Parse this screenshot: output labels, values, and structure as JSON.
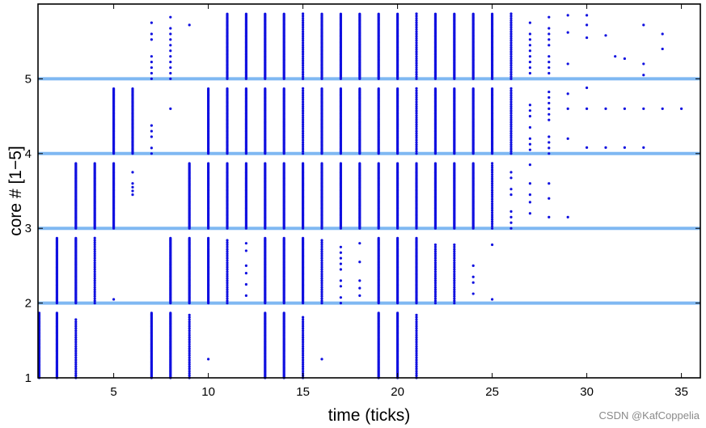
{
  "chart_data": {
    "type": "scatter",
    "xlabel": "time (ticks)",
    "ylabel": "core # [1−5]",
    "xlim": [
      1,
      36
    ],
    "ylim": [
      1,
      6
    ],
    "xticks": [
      5,
      10,
      15,
      20,
      25,
      30,
      35
    ],
    "yticks": [
      1,
      2,
      3,
      4,
      5
    ],
    "grid": false,
    "separator_color": "#7fb8f2",
    "marker_color": "#1010e0",
    "bands": [
      {
        "core": 1,
        "columns": [
          {
            "x": 1,
            "lo": 0.0,
            "hi": 0.88,
            "density": "dense"
          },
          {
            "x": 2,
            "lo": 0.0,
            "hi": 0.88,
            "density": "dense"
          },
          {
            "x": 3,
            "lo": 0.0,
            "hi": 0.8,
            "density": "medium"
          },
          {
            "x": 7,
            "lo": 0.0,
            "hi": 0.88,
            "density": "dense"
          },
          {
            "x": 8,
            "lo": 0.0,
            "hi": 0.88,
            "density": "dense"
          },
          {
            "x": 9,
            "lo": 0.0,
            "hi": 0.85,
            "density": "medium"
          },
          {
            "x": 10,
            "points": [
              0.25
            ]
          },
          {
            "x": 13,
            "lo": 0.0,
            "hi": 0.88,
            "density": "dense"
          },
          {
            "x": 14,
            "lo": 0.0,
            "hi": 0.88,
            "density": "dense"
          },
          {
            "x": 15,
            "lo": 0.0,
            "hi": 0.82,
            "density": "medium"
          },
          {
            "x": 16,
            "points": [
              0.25
            ]
          },
          {
            "x": 19,
            "lo": 0.0,
            "hi": 0.88,
            "density": "dense"
          },
          {
            "x": 20,
            "lo": 0.0,
            "hi": 0.88,
            "density": "dense"
          },
          {
            "x": 21,
            "lo": 0.0,
            "hi": 0.85,
            "density": "medium"
          }
        ]
      },
      {
        "core": 2,
        "columns": [
          {
            "x": 2,
            "lo": 0.0,
            "hi": 0.88,
            "density": "dense"
          },
          {
            "x": 3,
            "lo": 0.0,
            "hi": 0.88,
            "density": "dense"
          },
          {
            "x": 4,
            "lo": 0.0,
            "hi": 0.88,
            "density": "medium"
          },
          {
            "x": 5,
            "points": [
              0.05
            ]
          },
          {
            "x": 8,
            "lo": 0.0,
            "hi": 0.88,
            "density": "dense"
          },
          {
            "x": 9,
            "lo": 0.0,
            "hi": 0.88,
            "density": "dense"
          },
          {
            "x": 10,
            "lo": 0.0,
            "hi": 0.88,
            "density": "dense"
          },
          {
            "x": 11,
            "lo": 0.0,
            "hi": 0.85,
            "density": "medium"
          },
          {
            "x": 12,
            "points": [
              0.1,
              0.25,
              0.4,
              0.5,
              0.7,
              0.8
            ]
          },
          {
            "x": 13,
            "lo": 0.0,
            "hi": 0.88,
            "density": "dense"
          },
          {
            "x": 14,
            "lo": 0.0,
            "hi": 0.88,
            "density": "dense"
          },
          {
            "x": 15,
            "lo": 0.0,
            "hi": 0.88,
            "density": "dense"
          },
          {
            "x": 16,
            "lo": 0.0,
            "hi": 0.85,
            "density": "medium"
          },
          {
            "x": 17,
            "lo": 0.0,
            "hi": 0.8,
            "density": "sparse"
          },
          {
            "x": 18,
            "points": [
              0.1,
              0.2,
              0.3,
              0.55,
              0.8
            ]
          },
          {
            "x": 19,
            "lo": 0.0,
            "hi": 0.88,
            "density": "dense"
          },
          {
            "x": 20,
            "lo": 0.0,
            "hi": 0.88,
            "density": "dense"
          },
          {
            "x": 21,
            "lo": 0.0,
            "hi": 0.88,
            "density": "dense"
          },
          {
            "x": 22,
            "lo": 0.0,
            "hi": 0.8,
            "density": "medium"
          },
          {
            "x": 23,
            "lo": 0.0,
            "hi": 0.8,
            "density": "medium"
          },
          {
            "x": 24,
            "lo": 0.05,
            "hi": 0.5,
            "density": "sparse"
          },
          {
            "x": 25,
            "points": [
              0.05,
              0.78
            ]
          }
        ]
      },
      {
        "core": 3,
        "columns": [
          {
            "x": 3,
            "lo": 0.0,
            "hi": 0.88,
            "density": "dense"
          },
          {
            "x": 4,
            "lo": 0.0,
            "hi": 0.88,
            "density": "dense"
          },
          {
            "x": 5,
            "lo": 0.0,
            "hi": 0.88,
            "density": "dense"
          },
          {
            "x": 6,
            "points": [
              0.45,
              0.5,
              0.55,
              0.6,
              0.75
            ]
          },
          {
            "x": 9,
            "lo": 0.0,
            "hi": 0.88,
            "density": "dense"
          },
          {
            "x": 10,
            "lo": 0.0,
            "hi": 0.88,
            "density": "dense"
          },
          {
            "x": 11,
            "lo": 0.0,
            "hi": 0.88,
            "density": "dense"
          },
          {
            "x": 12,
            "lo": 0.0,
            "hi": 0.88,
            "density": "dense"
          },
          {
            "x": 13,
            "lo": 0.0,
            "hi": 0.88,
            "density": "dense"
          },
          {
            "x": 14,
            "lo": 0.0,
            "hi": 0.88,
            "density": "dense"
          },
          {
            "x": 15,
            "lo": 0.0,
            "hi": 0.88,
            "density": "dense"
          },
          {
            "x": 16,
            "lo": 0.0,
            "hi": 0.88,
            "density": "dense"
          },
          {
            "x": 17,
            "lo": 0.0,
            "hi": 0.88,
            "density": "dense"
          },
          {
            "x": 18,
            "lo": 0.0,
            "hi": 0.88,
            "density": "dense"
          },
          {
            "x": 19,
            "lo": 0.0,
            "hi": 0.88,
            "density": "dense"
          },
          {
            "x": 20,
            "lo": 0.0,
            "hi": 0.88,
            "density": "dense"
          },
          {
            "x": 21,
            "lo": 0.0,
            "hi": 0.88,
            "density": "dense"
          },
          {
            "x": 22,
            "lo": 0.0,
            "hi": 0.88,
            "density": "dense"
          },
          {
            "x": 23,
            "lo": 0.0,
            "hi": 0.88,
            "density": "dense"
          },
          {
            "x": 24,
            "lo": 0.0,
            "hi": 0.88,
            "density": "dense"
          },
          {
            "x": 25,
            "lo": 0.0,
            "hi": 0.88,
            "density": "medium"
          },
          {
            "x": 26,
            "lo": 0.0,
            "hi": 0.85,
            "density": "sparse"
          },
          {
            "x": 27,
            "points": [
              0.2,
              0.35,
              0.45,
              0.6,
              0.85
            ]
          },
          {
            "x": 28,
            "points": [
              0.15,
              0.4,
              0.6
            ]
          },
          {
            "x": 29,
            "points": [
              0.15
            ]
          }
        ]
      },
      {
        "core": 4,
        "columns": [
          {
            "x": 5,
            "lo": 0.0,
            "hi": 0.88,
            "density": "dense"
          },
          {
            "x": 6,
            "lo": 0.0,
            "hi": 0.88,
            "density": "dense"
          },
          {
            "x": 7,
            "lo": 0.0,
            "hi": 0.55,
            "density": "sparse"
          },
          {
            "x": 8,
            "points": [
              0.6
            ]
          },
          {
            "x": 10,
            "lo": 0.0,
            "hi": 0.88,
            "density": "dense"
          },
          {
            "x": 11,
            "lo": 0.0,
            "hi": 0.88,
            "density": "dense"
          },
          {
            "x": 12,
            "lo": 0.0,
            "hi": 0.88,
            "density": "dense"
          },
          {
            "x": 13,
            "lo": 0.0,
            "hi": 0.88,
            "density": "dense"
          },
          {
            "x": 14,
            "lo": 0.0,
            "hi": 0.88,
            "density": "dense"
          },
          {
            "x": 15,
            "lo": 0.0,
            "hi": 0.88,
            "density": "medium"
          },
          {
            "x": 16,
            "lo": 0.0,
            "hi": 0.88,
            "density": "dense"
          },
          {
            "x": 17,
            "lo": 0.0,
            "hi": 0.88,
            "density": "dense"
          },
          {
            "x": 18,
            "lo": 0.0,
            "hi": 0.88,
            "density": "dense"
          },
          {
            "x": 19,
            "lo": 0.0,
            "hi": 0.88,
            "density": "dense"
          },
          {
            "x": 20,
            "lo": 0.0,
            "hi": 0.88,
            "density": "dense"
          },
          {
            "x": 21,
            "lo": 0.0,
            "hi": 0.88,
            "density": "medium"
          },
          {
            "x": 22,
            "lo": 0.0,
            "hi": 0.88,
            "density": "dense"
          },
          {
            "x": 23,
            "lo": 0.0,
            "hi": 0.88,
            "density": "dense"
          },
          {
            "x": 24,
            "lo": 0.0,
            "hi": 0.88,
            "density": "dense"
          },
          {
            "x": 25,
            "lo": 0.0,
            "hi": 0.88,
            "density": "dense"
          },
          {
            "x": 26,
            "lo": 0.0,
            "hi": 0.88,
            "density": "medium"
          },
          {
            "x": 27,
            "lo": 0.05,
            "hi": 0.65,
            "density": "sparse"
          },
          {
            "x": 28,
            "lo": 0.0,
            "hi": 0.88,
            "density": "sparse"
          },
          {
            "x": 29,
            "points": [
              0.2,
              0.6,
              0.8
            ]
          },
          {
            "x": 30,
            "points": [
              0.08,
              0.6,
              0.88
            ]
          },
          {
            "x": 31,
            "points": [
              0.08,
              0.6
            ]
          },
          {
            "x": 32,
            "points": [
              0.08,
              0.6
            ]
          },
          {
            "x": 33,
            "points": [
              0.08,
              0.6
            ]
          },
          {
            "x": 34,
            "points": [
              0.6
            ]
          },
          {
            "x": 35,
            "points": [
              0.6
            ]
          }
        ]
      },
      {
        "core": 5,
        "columns": [
          {
            "x": 7,
            "lo": 0.0,
            "hi": 0.88,
            "density": "sparse"
          },
          {
            "x": 8,
            "lo": 0.0,
            "hi": 0.85,
            "density": "sparse"
          },
          {
            "x": 9,
            "points": [
              0.72
            ]
          },
          {
            "x": 11,
            "lo": 0.0,
            "hi": 0.88,
            "density": "dense"
          },
          {
            "x": 12,
            "lo": 0.0,
            "hi": 0.88,
            "density": "dense"
          },
          {
            "x": 13,
            "lo": 0.0,
            "hi": 0.88,
            "density": "dense"
          },
          {
            "x": 14,
            "lo": 0.0,
            "hi": 0.88,
            "density": "dense"
          },
          {
            "x": 15,
            "lo": 0.0,
            "hi": 0.88,
            "density": "medium"
          },
          {
            "x": 16,
            "lo": 0.0,
            "hi": 0.88,
            "density": "dense"
          },
          {
            "x": 17,
            "lo": 0.0,
            "hi": 0.88,
            "density": "dense"
          },
          {
            "x": 18,
            "lo": 0.0,
            "hi": 0.88,
            "density": "dense"
          },
          {
            "x": 19,
            "lo": 0.0,
            "hi": 0.88,
            "density": "dense"
          },
          {
            "x": 20,
            "lo": 0.0,
            "hi": 0.88,
            "density": "dense"
          },
          {
            "x": 21,
            "lo": 0.0,
            "hi": 0.88,
            "density": "medium"
          },
          {
            "x": 22,
            "lo": 0.0,
            "hi": 0.88,
            "density": "dense"
          },
          {
            "x": 23,
            "lo": 0.0,
            "hi": 0.88,
            "density": "dense"
          },
          {
            "x": 24,
            "lo": 0.0,
            "hi": 0.88,
            "density": "dense"
          },
          {
            "x": 25,
            "lo": 0.0,
            "hi": 0.88,
            "density": "dense"
          },
          {
            "x": 26,
            "lo": 0.0,
            "hi": 0.88,
            "density": "medium"
          },
          {
            "x": 27,
            "lo": 0.0,
            "hi": 0.85,
            "density": "sparse"
          },
          {
            "x": 28,
            "lo": 0.0,
            "hi": 0.85,
            "density": "sparse"
          },
          {
            "x": 29,
            "points": [
              0.2,
              0.62,
              0.85
            ]
          },
          {
            "x": 30,
            "points": [
              0.55,
              0.72,
              0.85
            ]
          },
          {
            "x": 31,
            "points": [
              0.58
            ]
          },
          {
            "x": 31.5,
            "points": [
              0.3
            ]
          },
          {
            "x": 32,
            "points": [
              0.27
            ]
          },
          {
            "x": 33,
            "points": [
              0.05,
              0.2,
              0.72
            ]
          },
          {
            "x": 34,
            "points": [
              0.4,
              0.6
            ]
          }
        ]
      }
    ]
  },
  "watermark": "CSDN @KafCoppelia"
}
